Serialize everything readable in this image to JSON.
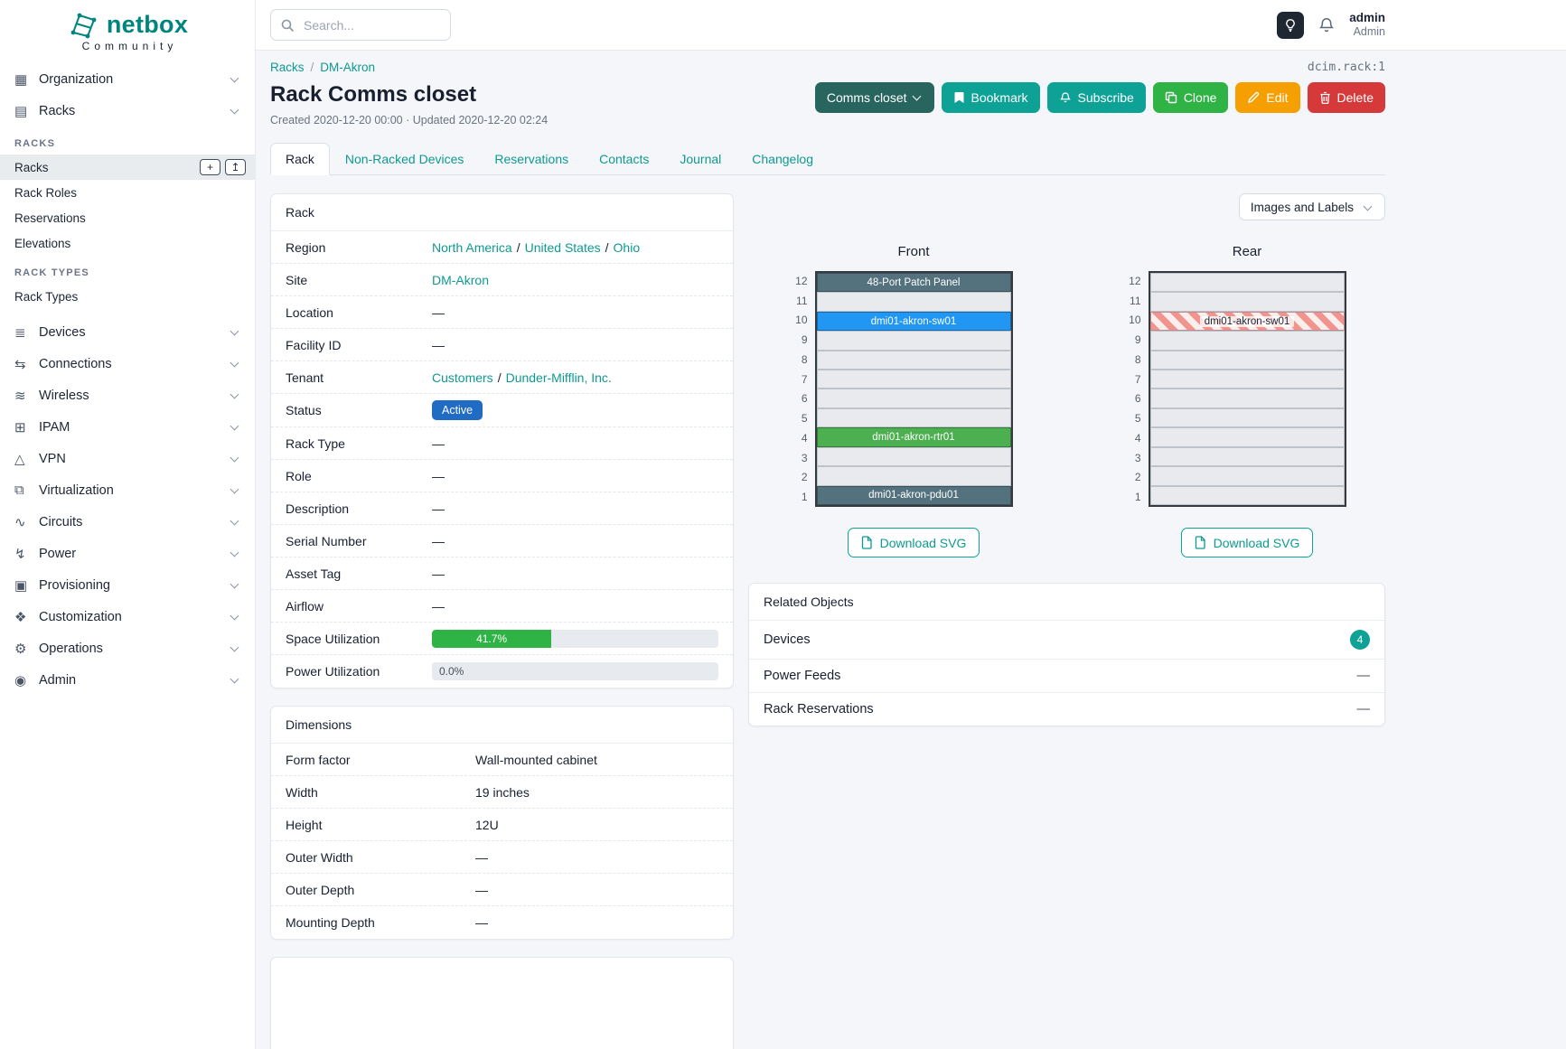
{
  "brand": {
    "name": "netbox",
    "community": "Community"
  },
  "theme": {
    "brand_teal": "#00857e",
    "accent_teal": "#0ea196",
    "status_active_blue": "#206bc4",
    "utilization_green": "#2fb344",
    "clone_green": "#2fb344",
    "edit_orange": "#f59f00",
    "delete_red": "#d63939"
  },
  "topbar": {
    "search_placeholder": "Search...",
    "user_name": "admin",
    "user_role": "Admin"
  },
  "sidebar": {
    "top_items": [
      {
        "label": "Organization",
        "icon": "building"
      },
      {
        "label": "Racks",
        "icon": "server-rack"
      }
    ],
    "racks_menu": {
      "groups": [
        {
          "header": "RACKS",
          "items": [
            {
              "label": "Racks",
              "active": true,
              "buttons": [
                {
                  "name": "add-button",
                  "glyph": "+"
                },
                {
                  "name": "import-button",
                  "glyph": "↥"
                }
              ]
            },
            {
              "label": "Rack Roles"
            },
            {
              "label": "Reservations"
            },
            {
              "label": "Elevations"
            }
          ]
        },
        {
          "header": "RACK TYPES",
          "items": [
            {
              "label": "Rack Types"
            }
          ]
        }
      ]
    },
    "bottom_items": [
      {
        "label": "Devices",
        "icon": "devices"
      },
      {
        "label": "Connections",
        "icon": "connections"
      },
      {
        "label": "Wireless",
        "icon": "wifi"
      },
      {
        "label": "IPAM",
        "icon": "grid"
      },
      {
        "label": "VPN",
        "icon": "network"
      },
      {
        "label": "Virtualization",
        "icon": "monitor"
      },
      {
        "label": "Circuits",
        "icon": "wave"
      },
      {
        "label": "Power",
        "icon": "bolt"
      },
      {
        "label": "Provisioning",
        "icon": "clipboard"
      },
      {
        "label": "Customization",
        "icon": "palette"
      },
      {
        "label": "Operations",
        "icon": "gear"
      },
      {
        "label": "Admin",
        "icon": "users"
      }
    ]
  },
  "page": {
    "breadcrumb": [
      {
        "label": "Racks"
      },
      {
        "label": "DM-Akron"
      }
    ],
    "object_id": "dcim.rack:1",
    "title": "Rack Comms closet",
    "meta": "Created 2020-12-20 00:00 · Updated 2020-12-20 02:24",
    "actions": {
      "context": "Comms closet",
      "bookmark": "Bookmark",
      "subscribe": "Subscribe",
      "clone": "Clone",
      "edit": "Edit",
      "delete": "Delete"
    },
    "tabs": [
      {
        "label": "Rack",
        "active": true
      },
      {
        "label": "Non-Racked Devices"
      },
      {
        "label": "Reservations"
      },
      {
        "label": "Contacts"
      },
      {
        "label": "Journal"
      },
      {
        "label": "Changelog"
      }
    ]
  },
  "rack_panel": {
    "title": "Rack",
    "rows": [
      {
        "label": "Region",
        "type": "links",
        "parts": [
          "North America",
          "United States",
          "Ohio"
        ]
      },
      {
        "label": "Site",
        "type": "links",
        "parts": [
          "DM-Akron"
        ]
      },
      {
        "label": "Location",
        "type": "empty",
        "value": "—"
      },
      {
        "label": "Facility ID",
        "type": "empty",
        "value": "—"
      },
      {
        "label": "Tenant",
        "type": "links",
        "parts": [
          "Customers",
          "Dunder-Mifflin, Inc."
        ]
      },
      {
        "label": "Status",
        "type": "badge",
        "value": "Active"
      },
      {
        "label": "Rack Type",
        "type": "empty",
        "value": "—"
      },
      {
        "label": "Role",
        "type": "empty",
        "value": "—"
      },
      {
        "label": "Description",
        "type": "empty",
        "value": "—"
      },
      {
        "label": "Serial Number",
        "type": "empty",
        "value": "—"
      },
      {
        "label": "Asset Tag",
        "type": "empty",
        "value": "—"
      },
      {
        "label": "Airflow",
        "type": "empty",
        "value": "—"
      },
      {
        "label": "Space Utilization",
        "type": "progress",
        "value": 41.7,
        "display": "41.7%"
      },
      {
        "label": "Power Utilization",
        "type": "progress",
        "value": 0.0,
        "display": "0.0%"
      }
    ]
  },
  "dimensions_panel": {
    "title": "Dimensions",
    "rows": [
      {
        "label": "Form factor",
        "value": "Wall-mounted cabinet"
      },
      {
        "label": "Width",
        "value": "19 inches"
      },
      {
        "label": "Height",
        "value": "12U"
      },
      {
        "label": "Outer Width",
        "value": "—"
      },
      {
        "label": "Outer Depth",
        "value": "—"
      },
      {
        "label": "Mounting Depth",
        "value": "—"
      }
    ]
  },
  "elevations": {
    "toolbar_button": "Images and Labels",
    "download_label": "Download SVG",
    "units": [
      12,
      11,
      10,
      9,
      8,
      7,
      6,
      5,
      4,
      3,
      2,
      1
    ],
    "front": {
      "title": "Front",
      "devices": [
        {
          "unit": 12,
          "name": "48-Port Patch Panel",
          "color": "#54717e",
          "text_color": "#ffffff",
          "style": "solid"
        },
        {
          "unit": 10,
          "name": "dmi01-akron-sw01",
          "color": "#2196f3",
          "text_color": "#ffffff",
          "style": "solid"
        },
        {
          "unit": 4,
          "name": "dmi01-akron-rtr01",
          "color": "#4caf50",
          "text_color": "#ffffff",
          "style": "solid"
        },
        {
          "unit": 1,
          "name": "dmi01-akron-pdu01",
          "color": "#54717e",
          "text_color": "#ffffff",
          "style": "solid"
        }
      ]
    },
    "rear": {
      "title": "Rear",
      "devices": [
        {
          "unit": 10,
          "name": "dmi01-akron-sw01",
          "color": "#f1948e",
          "text_color": "#1a2332",
          "style": "striped"
        }
      ]
    }
  },
  "related_objects": {
    "title": "Related Objects",
    "rows": [
      {
        "label": "Devices",
        "badge": "4"
      },
      {
        "label": "Power Feeds",
        "value": "—"
      },
      {
        "label": "Rack Reservations",
        "value": "—"
      }
    ]
  }
}
